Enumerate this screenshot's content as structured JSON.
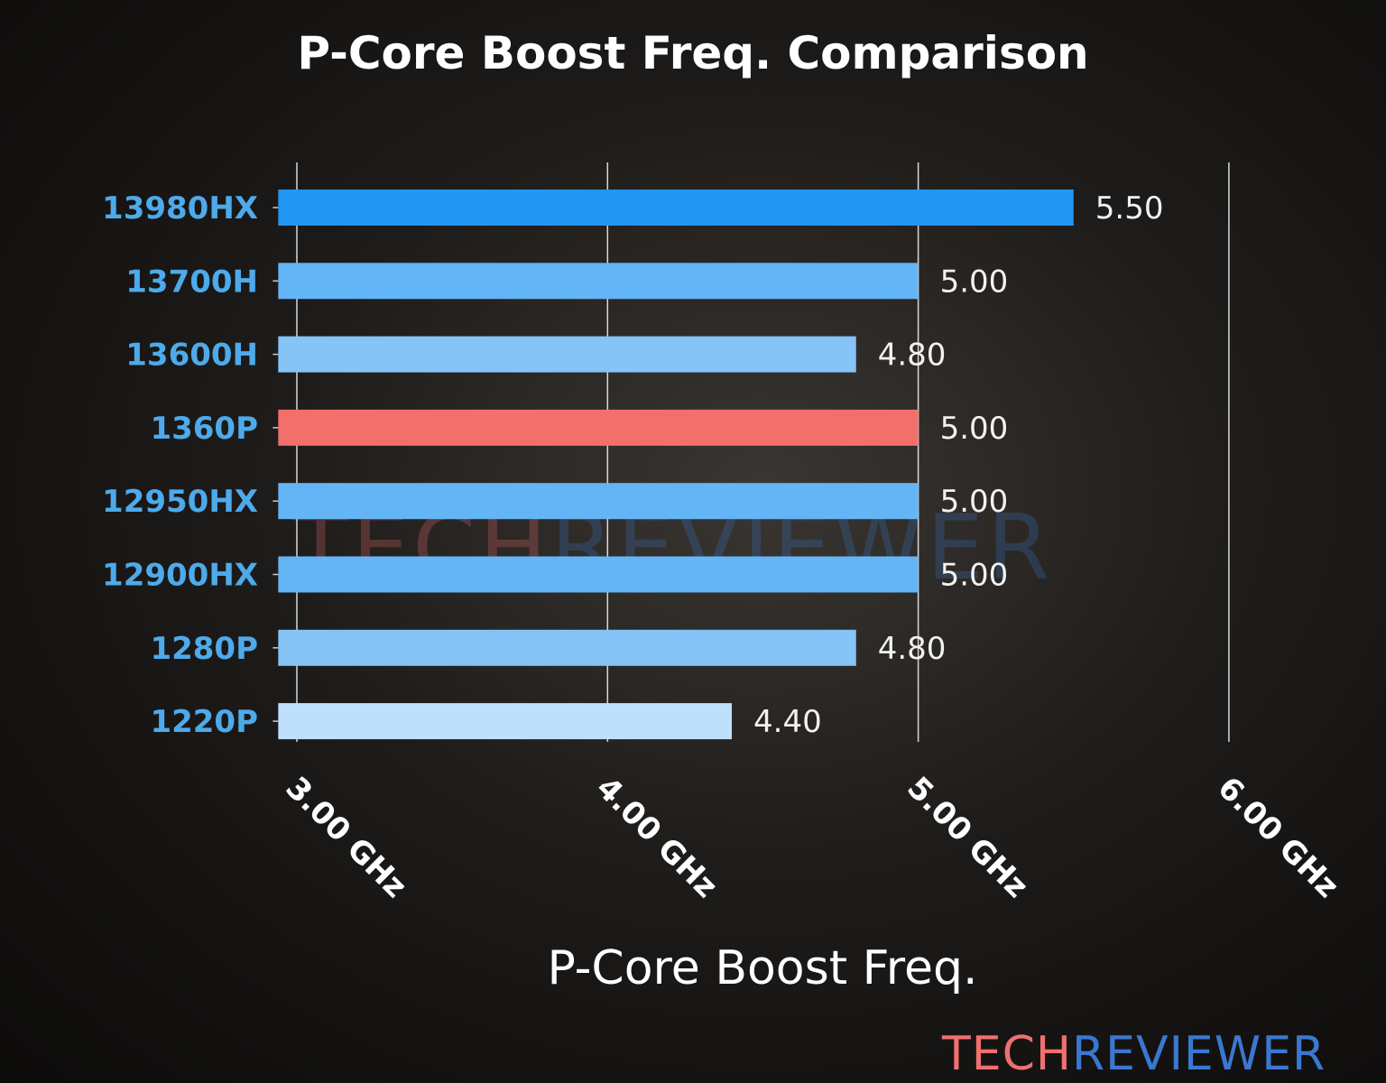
{
  "chart_data": {
    "type": "bar",
    "orientation": "horizontal",
    "title": "P-Core Boost Freq. Comparison",
    "xlabel": "P-Core Boost Freq.",
    "ylabel": "",
    "categories": [
      "13980HX",
      "13700H",
      "13600H",
      "1360P",
      "12950HX",
      "12900HX",
      "1280P",
      "1220P"
    ],
    "values": [
      5.5,
      5.0,
      4.8,
      5.0,
      5.0,
      5.0,
      4.8,
      4.4
    ],
    "value_labels": [
      "5.50",
      "5.00",
      "4.80",
      "5.00",
      "5.00",
      "5.00",
      "4.80",
      "4.40"
    ],
    "bar_colors": [
      "#2196F3",
      "#64B5F6",
      "#86C3F7",
      "#F26F6C",
      "#64B5F6",
      "#64B5F6",
      "#86C3F7",
      "#BFE0FC"
    ],
    "xticks": [
      3,
      4,
      5,
      6
    ],
    "xtick_labels": [
      "3.00 GHz",
      "4.00 GHz",
      "5.00 GHz",
      "6.00 GHz"
    ],
    "xlim": [
      2.94,
      6.0
    ],
    "grid": "vertical",
    "category_label_color": "#4DAAEB"
  },
  "watermark": {
    "part1": "TECH",
    "part2": "REVIEWER"
  },
  "logo": {
    "part1": "TECH",
    "part2": "REVIEWER"
  }
}
